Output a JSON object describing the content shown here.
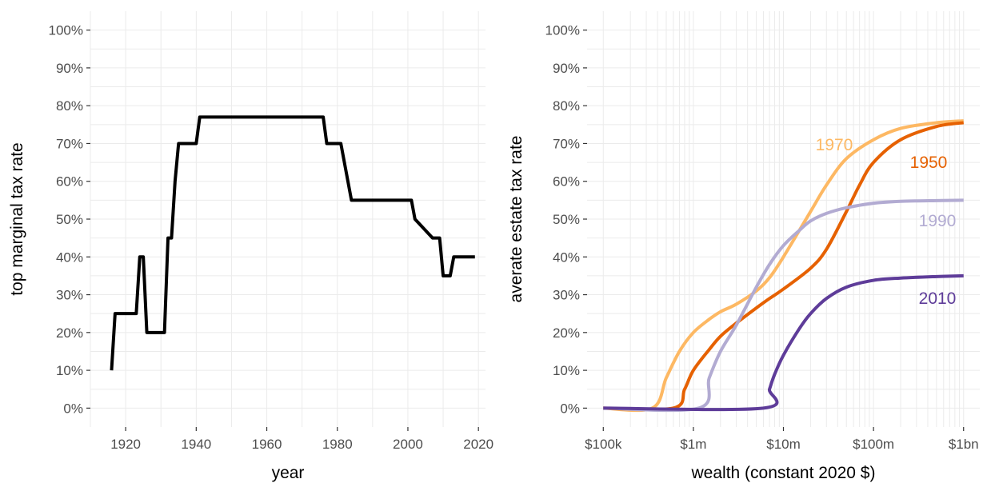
{
  "chart_data": [
    {
      "type": "line",
      "title": "",
      "xlabel": "year",
      "ylabel": "top marginal tax rate",
      "xlim": [
        1910,
        2022
      ],
      "ylim": [
        0,
        100
      ],
      "x_ticks": [
        1920,
        1940,
        1960,
        1980,
        2000,
        2020
      ],
      "x_tick_labels": [
        "1920",
        "1940",
        "1960",
        "1980",
        "2000",
        "2020"
      ],
      "y_ticks": [
        0,
        10,
        20,
        30,
        40,
        50,
        60,
        70,
        80,
        90,
        100
      ],
      "y_tick_labels": [
        "0%",
        "10%",
        "20%",
        "30%",
        "40%",
        "50%",
        "60%",
        "70%",
        "80%",
        "90%",
        "100%"
      ],
      "grid": true,
      "series": [
        {
          "color": "#000000",
          "points": [
            [
              1916,
              10
            ],
            [
              1917,
              25
            ],
            [
              1923,
              25
            ],
            [
              1924,
              40
            ],
            [
              1925,
              40
            ],
            [
              1926,
              20
            ],
            [
              1931,
              20
            ],
            [
              1932,
              45
            ],
            [
              1933,
              45
            ],
            [
              1934,
              60
            ],
            [
              1935,
              70
            ],
            [
              1940,
              70
            ],
            [
              1941,
              77
            ],
            [
              1976,
              77
            ],
            [
              1977,
              70
            ],
            [
              1981,
              70
            ],
            [
              1984,
              55
            ],
            [
              2001,
              55
            ],
            [
              2002,
              50
            ],
            [
              2007,
              45
            ],
            [
              2009,
              45
            ],
            [
              2010,
              35
            ],
            [
              2012,
              35
            ],
            [
              2013,
              40
            ],
            [
              2019,
              40
            ]
          ]
        }
      ]
    },
    {
      "type": "line",
      "title": "",
      "xlabel": "wealth (constant 2020 $)",
      "ylabel": "averate estate tax rate",
      "x_scale": "log10",
      "xlim": [
        100000,
        1000000000
      ],
      "ylim": [
        0,
        100
      ],
      "x_ticks": [
        100000,
        1000000,
        10000000,
        100000000,
        1000000000
      ],
      "x_tick_labels": [
        "$100k",
        "$1m",
        "$10m",
        "$100m",
        "$1bn"
      ],
      "y_ticks": [
        0,
        10,
        20,
        30,
        40,
        50,
        60,
        70,
        80,
        90,
        100
      ],
      "y_tick_labels": [
        "0%",
        "10%",
        "20%",
        "30%",
        "40%",
        "50%",
        "60%",
        "70%",
        "80%",
        "90%",
        "100%"
      ],
      "grid": true,
      "series": [
        {
          "name": "1970",
          "color": "#fdb863",
          "points": [
            [
              100000,
              0
            ],
            [
              350000,
              0
            ],
            [
              500000,
              8
            ],
            [
              700000,
              15
            ],
            [
              1000000,
              20
            ],
            [
              1500000,
              23.5
            ],
            [
              2000000,
              25.5
            ],
            [
              3000000,
              27.5
            ],
            [
              5000000,
              31
            ],
            [
              7000000,
              34.5
            ],
            [
              10000000,
              40
            ],
            [
              20000000,
              52
            ],
            [
              30000000,
              59
            ],
            [
              50000000,
              66
            ],
            [
              100000000,
              71
            ],
            [
              200000000,
              74
            ],
            [
              500000000,
              75.5
            ],
            [
              1000000000,
              76
            ]
          ]
        },
        {
          "name": "1950",
          "color": "#e66101",
          "points": [
            [
              100000,
              0
            ],
            [
              600000,
              0
            ],
            [
              800000,
              5
            ],
            [
              1000000,
              10
            ],
            [
              1500000,
              15.5
            ],
            [
              2000000,
              19
            ],
            [
              3000000,
              22.5
            ],
            [
              5000000,
              26.5
            ],
            [
              7000000,
              29
            ],
            [
              10000000,
              31.5
            ],
            [
              20000000,
              37
            ],
            [
              30000000,
              42
            ],
            [
              50000000,
              52
            ],
            [
              70000000,
              59
            ],
            [
              100000000,
              65
            ],
            [
              200000000,
              71
            ],
            [
              500000000,
              74.5
            ],
            [
              1000000000,
              75.5
            ]
          ]
        },
        {
          "name": "1990",
          "color": "#b2abd2",
          "points": [
            [
              100000,
              0
            ],
            [
              1150000,
              0
            ],
            [
              1500000,
              8
            ],
            [
              2000000,
              15
            ],
            [
              3000000,
              22
            ],
            [
              5000000,
              32
            ],
            [
              7000000,
              38
            ],
            [
              10000000,
              43
            ],
            [
              15000000,
              47
            ],
            [
              20000000,
              49.5
            ],
            [
              30000000,
              51.5
            ],
            [
              50000000,
              53
            ],
            [
              100000000,
              54.2
            ],
            [
              200000000,
              54.7
            ],
            [
              500000000,
              54.9
            ],
            [
              1000000000,
              55
            ]
          ]
        },
        {
          "name": "2010",
          "color": "#5e3c99",
          "points": [
            [
              100000,
              0
            ],
            [
              6000000,
              0
            ],
            [
              7000000,
              5
            ],
            [
              8000000,
              9
            ],
            [
              10000000,
              14
            ],
            [
              15000000,
              21
            ],
            [
              20000000,
              25
            ],
            [
              30000000,
              29
            ],
            [
              50000000,
              32
            ],
            [
              100000000,
              33.8
            ],
            [
              200000000,
              34.4
            ],
            [
              500000000,
              34.8
            ],
            [
              1000000000,
              35
            ]
          ]
        }
      ]
    }
  ]
}
